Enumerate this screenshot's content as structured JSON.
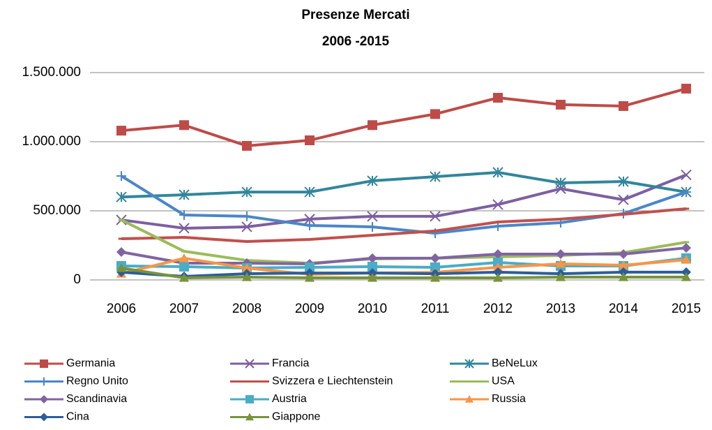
{
  "chart_data": {
    "type": "line",
    "title": "Presenze Mercati",
    "subtitle": "2006 -2015",
    "categories": [
      "2006",
      "2007",
      "2008",
      "2009",
      "2010",
      "2011",
      "2012",
      "2013",
      "2014",
      "2015"
    ],
    "ylim": [
      0,
      1500000
    ],
    "yticks": [
      0,
      {
        "value": 500000,
        "label": "500.000"
      },
      {
        "value": 1000000,
        "label": "1.000.000"
      },
      {
        "value": 1500000,
        "label": "1.500.000"
      }
    ],
    "grid": true,
    "series": [
      {
        "name": "Germania",
        "color": "#be4b48",
        "marker": "square",
        "values": [
          1080000,
          1120000,
          970000,
          1010000,
          1120000,
          1200000,
          1318000,
          1268000,
          1258000,
          1384000
        ]
      },
      {
        "name": "Francia",
        "color": "#7d5fa0",
        "marker": "x",
        "values": [
          434000,
          374000,
          384000,
          440000,
          460000,
          460000,
          545000,
          660000,
          580000,
          760000
        ]
      },
      {
        "name": "BeNeLux",
        "color": "#31869c",
        "marker": "star",
        "values": [
          600000,
          616000,
          636000,
          636000,
          717000,
          747000,
          778000,
          702000,
          712000,
          636000
        ]
      },
      {
        "name": "Regno Unito",
        "color": "#4a86c8",
        "marker": "plus",
        "values": [
          752000,
          470000,
          460000,
          394000,
          384000,
          338000,
          389000,
          414000,
          480000,
          636000
        ]
      },
      {
        "name": "Svizzera e Liechtenstein",
        "color": "#c0504d",
        "marker": "dash",
        "values": [
          298000,
          308000,
          278000,
          293000,
          323000,
          354000,
          419000,
          440000,
          475000,
          515000
        ]
      },
      {
        "name": "USA",
        "color": "#9bbb59",
        "marker": "dash",
        "values": [
          434000,
          207000,
          141000,
          121000,
          152000,
          157000,
          167000,
          177000,
          197000,
          273000
        ]
      },
      {
        "name": "Scandinavia",
        "color": "#8064a2",
        "marker": "diamond",
        "values": [
          202000,
          121000,
          121000,
          116000,
          157000,
          157000,
          187000,
          187000,
          187000,
          232000
        ]
      },
      {
        "name": "Austria",
        "color": "#4bacc6",
        "marker": "square",
        "values": [
          101000,
          96000,
          86000,
          91000,
          96000,
          91000,
          126000,
          101000,
          101000,
          157000
        ]
      },
      {
        "name": "Russia",
        "color": "#f79646",
        "marker": "triangle",
        "values": [
          45000,
          157000,
          86000,
          40000,
          50000,
          55000,
          91000,
          116000,
          106000,
          146000
        ]
      },
      {
        "name": "Cina",
        "color": "#2c5d9a",
        "marker": "diamond",
        "values": [
          56000,
          25000,
          45000,
          50000,
          50000,
          45000,
          56000,
          45000,
          56000,
          56000
        ]
      },
      {
        "name": "Giappone",
        "color": "#77933c",
        "marker": "triangle",
        "values": [
          86000,
          15000,
          20000,
          15000,
          15000,
          15000,
          15000,
          20000,
          20000,
          20000
        ]
      }
    ]
  }
}
